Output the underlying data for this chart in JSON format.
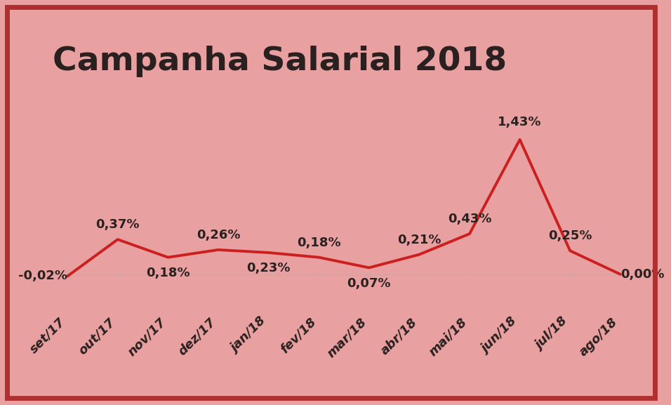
{
  "title": "Campanha Salarial 2018",
  "background_color": "#E8A0A0",
  "border_color": "#B03030",
  "line_color": "#CC2020",
  "zero_line_color": "#C8AAAA",
  "categories": [
    "set/17",
    "out/17",
    "nov/17",
    "dez/17",
    "jan/18",
    "fev/18",
    "mar/18",
    "abr/18",
    "mai/18",
    "jun/18",
    "jul/18",
    "ago/18"
  ],
  "values": [
    -0.02,
    0.37,
    0.18,
    0.26,
    0.23,
    0.18,
    0.07,
    0.21,
    0.43,
    1.43,
    0.25,
    0.0
  ],
  "labels": [
    "-0,02%",
    "0,37%",
    "0,18%",
    "0,26%",
    "0,23%",
    "0,18%",
    "0,07%",
    "0,21%",
    "0,43%",
    "1,43%",
    "0,25%",
    "0,00%"
  ],
  "title_fontsize": 34,
  "label_fontsize": 13,
  "tick_fontsize": 13,
  "title_color": "#2a2020",
  "label_color": "#2a2020",
  "tick_color": "#2a2020",
  "y_offsets": [
    0.0,
    0.09,
    -0.1,
    0.09,
    -0.1,
    0.09,
    -0.1,
    0.09,
    0.09,
    0.12,
    0.09,
    0.0
  ],
  "ha_list": [
    "right",
    "center",
    "center",
    "center",
    "center",
    "center",
    "center",
    "center",
    "center",
    "center",
    "center",
    "left"
  ],
  "va_list": [
    "center",
    "bottom",
    "top",
    "bottom",
    "top",
    "bottom",
    "top",
    "bottom",
    "bottom",
    "bottom",
    "bottom",
    "center"
  ],
  "ylim": [
    -0.4,
    1.8
  ],
  "xlim": [
    -0.3,
    11.3
  ]
}
